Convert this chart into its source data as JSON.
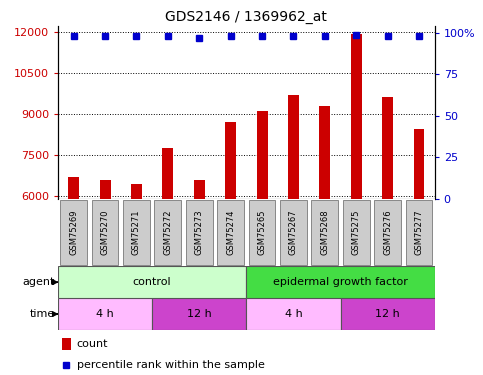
{
  "title": "GDS2146 / 1369962_at",
  "samples": [
    "GSM75269",
    "GSM75270",
    "GSM75271",
    "GSM75272",
    "GSM75273",
    "GSM75274",
    "GSM75265",
    "GSM75267",
    "GSM75268",
    "GSM75275",
    "GSM75276",
    "GSM75277"
  ],
  "bar_values": [
    6700,
    6600,
    6450,
    7750,
    6600,
    8700,
    9100,
    9700,
    9300,
    11900,
    9600,
    8450
  ],
  "percentile_values": [
    98,
    98,
    98,
    98,
    97,
    98,
    98,
    98,
    98,
    99,
    98,
    98
  ],
  "bar_color": "#cc0000",
  "percentile_color": "#0000cc",
  "ylim_left": [
    5900,
    12200
  ],
  "ylim_right": [
    0,
    104
  ],
  "yticks_left": [
    6000,
    7500,
    9000,
    10500,
    12000
  ],
  "yticks_right": [
    0,
    25,
    50,
    75,
    100
  ],
  "agent_groups": [
    {
      "label": "control",
      "start": 0,
      "end": 6,
      "color": "#ccffcc"
    },
    {
      "label": "epidermal growth factor",
      "start": 6,
      "end": 12,
      "color": "#44dd44"
    }
  ],
  "time_groups": [
    {
      "label": "4 h",
      "start": 0,
      "end": 3,
      "color": "#ffbbff"
    },
    {
      "label": "12 h",
      "start": 3,
      "end": 6,
      "color": "#cc44cc"
    },
    {
      "label": "4 h",
      "start": 6,
      "end": 9,
      "color": "#ffbbff"
    },
    {
      "label": "12 h",
      "start": 9,
      "end": 12,
      "color": "#cc44cc"
    }
  ],
  "legend_count_color": "#cc0000",
  "legend_percentile_color": "#0000cc",
  "sample_box_color": "#cccccc",
  "plot_bg_color": "#ffffff",
  "main_bg_color": "#ffffff"
}
